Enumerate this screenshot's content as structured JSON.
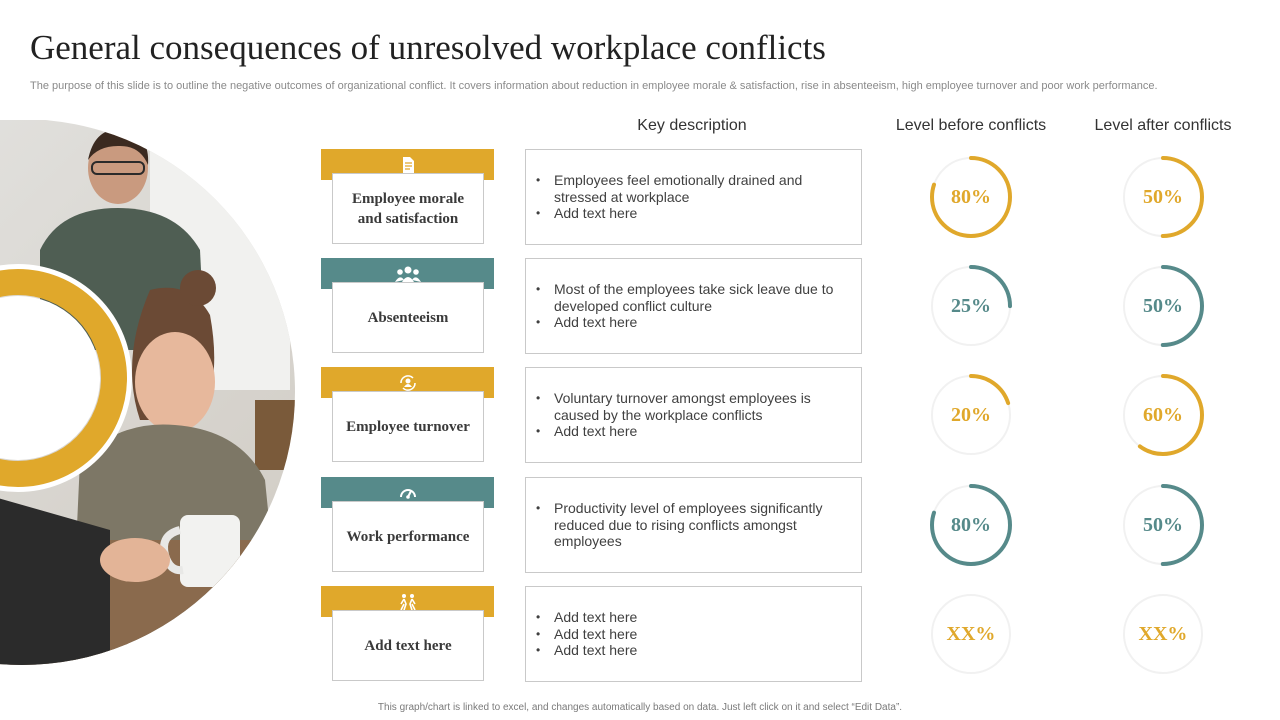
{
  "title": "General consequences of unresolved workplace conflicts",
  "subtitle": "The purpose of this slide is to outline the negative outcomes of organizational conflict. It covers information about reduction in employee morale & satisfaction, rise in absenteeism, high employee turnover and poor work performance.",
  "headers": {
    "key_description": "Key description",
    "before": "Level before conflicts",
    "after": "Level after conflicts"
  },
  "colors": {
    "gold": "#E0A82B",
    "teal": "#568A8A",
    "track": "#f1f1f1"
  },
  "rows": [
    {
      "label": "Employee morale and satisfaction",
      "icon": "document-icon",
      "color": "#E0A82B",
      "bullets": [
        "Employees feel emotionally drained and stressed at workplace",
        "Add text here"
      ],
      "before": {
        "text": "80%",
        "value": 80
      },
      "after": {
        "text": "50%",
        "value": 50
      }
    },
    {
      "label": "Absenteeism",
      "icon": "team-icon",
      "color": "#568A8A",
      "bullets": [
        "Most of the employees take sick leave due to developed conflict culture",
        "Add text here"
      ],
      "before": {
        "text": "25%",
        "value": 25
      },
      "after": {
        "text": "50%",
        "value": 50
      }
    },
    {
      "label": "Employee turnover",
      "icon": "user-cycle-icon",
      "color": "#E0A82B",
      "bullets": [
        "Voluntary turnover amongst employees is caused by the workplace conflicts",
        "Add text here"
      ],
      "before": {
        "text": "20%",
        "value": 20
      },
      "after": {
        "text": "60%",
        "value": 60
      }
    },
    {
      "label": "Work performance",
      "icon": "speedometer-icon",
      "color": "#568A8A",
      "bullets": [
        "Productivity level of employees significantly reduced due to rising conflicts amongst employees"
      ],
      "before": {
        "text": "80%",
        "value": 80
      },
      "after": {
        "text": "50%",
        "value": 50
      }
    },
    {
      "label": "Add text here",
      "icon": "people-running-icon",
      "color": "#E0A82B",
      "bullets": [
        "Add text here",
        "Add text here",
        "Add text here"
      ],
      "before": {
        "text": "XX%",
        "value": 0
      },
      "after": {
        "text": "XX%",
        "value": 0
      }
    }
  ],
  "footer": "This graph/chart is linked to excel, and changes automatically based on data. Just left click on it and select “Edit Data”."
}
